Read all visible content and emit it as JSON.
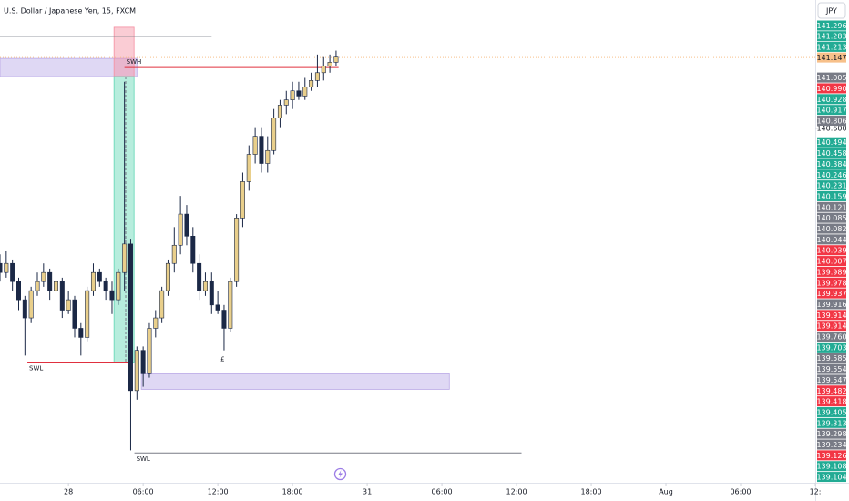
{
  "chart_data": {
    "type": "candlestick",
    "title": "U.S. Dollar / Japanese Yen, 15, FXCM",
    "currency": "JPY",
    "xlim": [
      -5.5,
      60
    ],
    "ylim": [
      137.87,
      141.59
    ],
    "xticks": [
      {
        "value": 0,
        "label": "28"
      },
      {
        "value": 6,
        "label": "06:00"
      },
      {
        "value": 12,
        "label": "12:00"
      },
      {
        "value": 18,
        "label": "18:00"
      },
      {
        "value": 24,
        "label": "31"
      },
      {
        "value": 30,
        "label": "06:00"
      },
      {
        "value": 36,
        "label": "12:00"
      },
      {
        "value": 42,
        "label": "18:00"
      },
      {
        "value": 48,
        "label": "Aug"
      },
      {
        "value": 54,
        "label": "06:00"
      },
      {
        "value": 60,
        "label": "12:"
      }
    ],
    "yticks": [
      {
        "value": 140.6,
        "label": "140.600"
      }
    ],
    "up_color": "#e9cf8b",
    "down_color": "#1b2846",
    "x": [
      -5.5,
      -5,
      -4.5,
      -4,
      -3.5,
      -3,
      -2.5,
      -2,
      -1.5,
      -1,
      -0.5,
      0,
      0.5,
      1,
      1.5,
      2,
      2.5,
      3,
      3.5,
      4,
      4.5,
      5,
      5.5,
      6,
      6.5,
      7,
      7.5,
      8,
      8.5,
      9,
      9.5,
      10,
      10.5,
      11,
      11.5,
      12,
      12.5,
      13,
      13.5,
      14,
      14.5,
      15,
      15.5,
      16,
      16.5,
      17,
      17.5,
      18,
      18.5,
      19,
      19.5,
      20,
      20.5,
      21,
      21.5
    ],
    "open": [
      139.56,
      139.49,
      139.56,
      139.42,
      139.28,
      139.14,
      139.35,
      139.42,
      139.49,
      139.35,
      139.42,
      139.2,
      139.28,
      139.06,
      138.99,
      139.35,
      139.49,
      139.42,
      139.35,
      139.28,
      139.49,
      139.71,
      138.58,
      138.89,
      138.71,
      139.06,
      139.14,
      139.35,
      139.56,
      139.7,
      139.94,
      139.77,
      139.56,
      139.35,
      139.42,
      139.24,
      139.2,
      139.06,
      139.42,
      139.91,
      140.19,
      140.4,
      140.54,
      140.33,
      140.43,
      140.68,
      140.78,
      140.82,
      140.89,
      140.85,
      140.92,
      140.97,
      141.03,
      141.08,
      141.11
    ],
    "high": [
      139.63,
      139.66,
      139.59,
      139.45,
      139.31,
      139.38,
      139.49,
      139.56,
      139.52,
      139.49,
      139.45,
      139.35,
      139.31,
      139.1,
      139.38,
      139.56,
      139.52,
      139.45,
      139.42,
      139.52,
      140.96,
      139.75,
      138.92,
      138.92,
      139.1,
      139.2,
      139.38,
      139.59,
      139.84,
      140.08,
      140.01,
      139.84,
      139.63,
      139.49,
      139.49,
      139.35,
      139.24,
      139.45,
      139.94,
      140.26,
      140.47,
      140.61,
      140.61,
      140.54,
      140.75,
      140.82,
      140.89,
      140.96,
      140.96,
      140.99,
      141.03,
      141.17,
      141.15,
      141.17,
      141.2
    ],
    "low": [
      139.42,
      139.45,
      139.35,
      139.2,
      138.85,
      139.1,
      139.31,
      139.38,
      139.28,
      139.31,
      139.14,
      139.17,
      138.99,
      138.85,
      138.96,
      139.31,
      139.38,
      139.28,
      139.17,
      139.24,
      139.35,
      138.12,
      138.51,
      138.61,
      138.68,
      138.99,
      139.1,
      139.31,
      139.49,
      139.63,
      139.7,
      139.49,
      139.28,
      139.31,
      139.17,
      139.17,
      138.89,
      139.03,
      139.38,
      139.84,
      140.12,
      140.33,
      140.26,
      140.26,
      140.4,
      140.61,
      140.71,
      140.75,
      140.82,
      140.82,
      140.89,
      140.92,
      140.97,
      141.03,
      141.08
    ],
    "close": [
      139.49,
      139.56,
      139.42,
      139.28,
      139.14,
      139.35,
      139.42,
      139.49,
      139.35,
      139.42,
      139.2,
      139.28,
      139.06,
      138.99,
      139.35,
      139.49,
      139.42,
      139.35,
      139.28,
      139.49,
      139.71,
      138.58,
      138.89,
      138.71,
      139.06,
      139.14,
      139.35,
      139.56,
      139.7,
      139.94,
      139.77,
      139.56,
      139.35,
      139.42,
      139.24,
      139.2,
      139.06,
      139.42,
      139.91,
      140.19,
      140.4,
      140.54,
      140.33,
      140.43,
      140.68,
      140.78,
      140.82,
      140.89,
      140.85,
      140.92,
      140.97,
      141.03,
      141.08,
      141.11,
      141.15
    ],
    "last_price": 141.147,
    "last_price_color": "#f7c08a",
    "zones": [
      {
        "top": 141.14,
        "bottom": 141.0,
        "x": [
          -5.5,
          5.5
        ],
        "color": "#b9a8e6"
      },
      {
        "top": 138.71,
        "bottom": 138.59,
        "x": [
          5.85,
          30.6
        ],
        "color": "#b9a8e6"
      },
      {
        "top": 141.38,
        "bottom": 141.0,
        "x": [
          3.66,
          5.27
        ],
        "color": "#f58ea0"
      },
      {
        "top": 141.0,
        "bottom": 138.8,
        "x": [
          3.66,
          5.27
        ],
        "color": "#5fd6b4"
      }
    ],
    "verticals": [
      {
        "x": 4.6,
        "from": 141.0,
        "to": 138.8
      }
    ],
    "levels": [
      {
        "price": 141.31,
        "x": [
          -5.5,
          11.5
        ],
        "color": "#787b86"
      },
      {
        "price": 141.07,
        "x": [
          4.5,
          21.7
        ],
        "color": "#e0303f",
        "label": "SWH"
      },
      {
        "price": 138.8,
        "x": [
          -3.3,
          5.1
        ],
        "color": "#e0303f",
        "label": "SWL"
      },
      {
        "price": 138.1,
        "x": [
          5.3,
          36.4
        ],
        "color": "#787b86",
        "label": "SWL"
      },
      {
        "price": 138.87,
        "x": [
          12.07,
          13.24
        ],
        "color": "#e0a030",
        "label": "£",
        "dotted": true
      }
    ],
    "price_tags_top": [
      {
        "label": "141.296",
        "color": "#22ab94"
      },
      {
        "label": "141.283",
        "color": "#22ab94"
      },
      {
        "label": "141.213",
        "color": "#22ab94"
      }
    ],
    "price_tags": [
      {
        "label": "141.005",
        "color": "#787b86"
      },
      {
        "label": "140.990",
        "color": "#f23645"
      },
      {
        "label": "140.928",
        "color": "#22ab94"
      },
      {
        "label": "140.917",
        "color": "#22ab94"
      },
      {
        "label": "140.806",
        "color": "#787b86"
      },
      {
        "label": "140.494",
        "color": "#22ab94"
      },
      {
        "label": "140.458",
        "color": "#22ab94"
      },
      {
        "label": "140.384",
        "color": "#22ab94"
      },
      {
        "label": "140.246",
        "color": "#22ab94"
      },
      {
        "label": "140.231",
        "color": "#22ab94"
      },
      {
        "label": "140.159",
        "color": "#22ab94"
      },
      {
        "label": "140.121",
        "color": "#787b86"
      },
      {
        "label": "140.085",
        "color": "#787b86"
      },
      {
        "label": "140.082",
        "color": "#787b86"
      },
      {
        "label": "140.044",
        "color": "#787b86"
      },
      {
        "label": "140.039",
        "color": "#f23645"
      },
      {
        "label": "140.007",
        "color": "#f23645"
      },
      {
        "label": "139.989",
        "color": "#f23645"
      },
      {
        "label": "139.978",
        "color": "#f23645"
      },
      {
        "label": "139.937",
        "color": "#f23645"
      },
      {
        "label": "139.916",
        "color": "#787b86"
      },
      {
        "label": "139.914",
        "color": "#f23645"
      },
      {
        "label": "139.914",
        "color": "#f23645"
      },
      {
        "label": "139.760",
        "color": "#787b86"
      },
      {
        "label": "139.703",
        "color": "#22ab94"
      },
      {
        "label": "139.585",
        "color": "#787b86"
      },
      {
        "label": "139.554",
        "color": "#787b86"
      },
      {
        "label": "139.547",
        "color": "#787b86"
      },
      {
        "label": "139.482",
        "color": "#f23645"
      },
      {
        "label": "139.418",
        "color": "#f23645"
      },
      {
        "label": "139.405",
        "color": "#22ab94"
      },
      {
        "label": "139.313",
        "color": "#22ab94"
      },
      {
        "label": "139.298",
        "color": "#787b86"
      },
      {
        "label": "139.234",
        "color": "#787b86"
      },
      {
        "label": "139.126",
        "color": "#f23645"
      },
      {
        "label": "139.108",
        "color": "#22ab94"
      },
      {
        "label": "139.104",
        "color": "#22ab94"
      }
    ]
  }
}
